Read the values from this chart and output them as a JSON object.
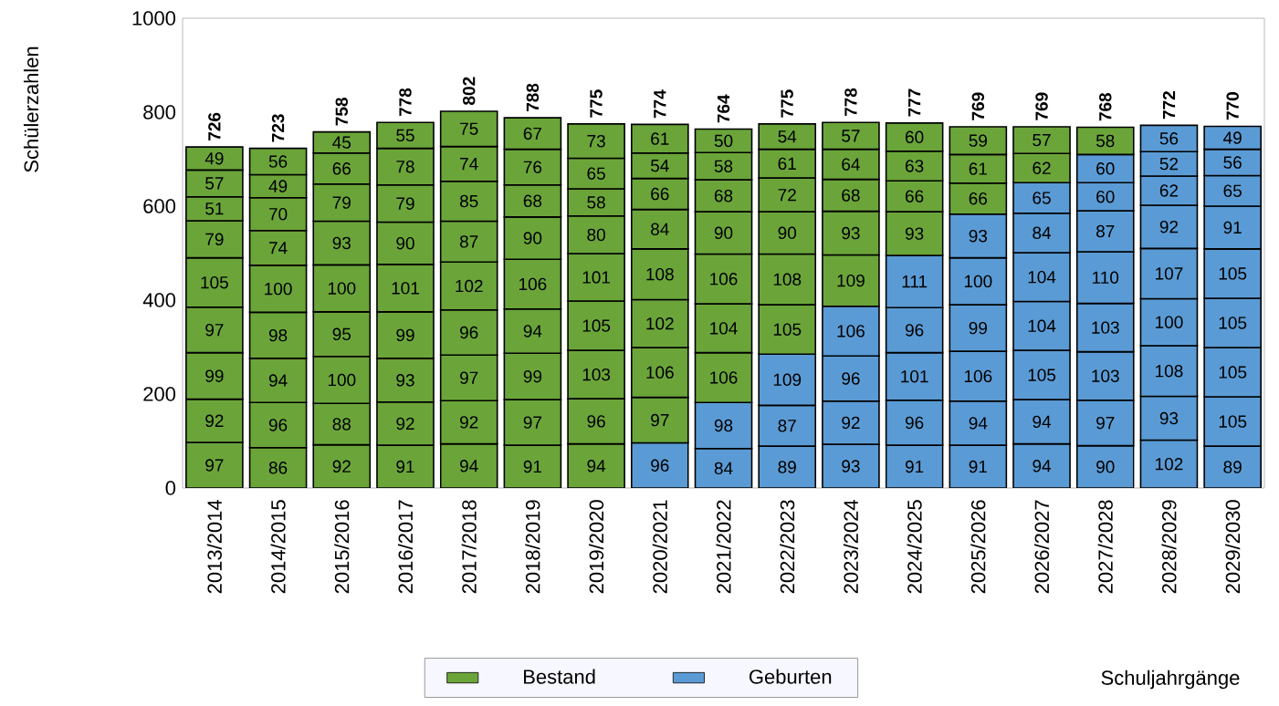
{
  "chart_data": {
    "type": "bar",
    "stacked": true,
    "ylabel": "Schülerzahlen",
    "xlabel": "Schuljahrgänge",
    "legend": "bottom",
    "data_labels": true,
    "categories": [
      "2013/2014",
      "2014/2015",
      "2015/2016",
      "2016/2017",
      "2017/2018",
      "2018/2019",
      "2019/2020",
      "2020/2021",
      "2021/2022",
      "2022/2023",
      "2023/2024",
      "2024/2025",
      "2025/2026",
      "2026/2027",
      "2027/2028",
      "2028/2029",
      "2029/2030"
    ],
    "ylim": [
      0,
      1000
    ],
    "yticks": [
      0,
      200,
      400,
      600,
      800,
      1000
    ],
    "totals": [
      "726",
      "723",
      "758",
      "778",
      "802",
      "788",
      "775",
      "774",
      "764",
      "775",
      "778",
      "777",
      "769",
      "769",
      "768",
      "772",
      "770"
    ],
    "series": [
      {
        "name": "Bestand",
        "color": "#6ba53a",
        "values": [
          97,
          86,
          92,
          91,
          94,
          91,
          94,
          null,
          null,
          null,
          null,
          null,
          null,
          null,
          null,
          null,
          null
        ]
      },
      {
        "name": "Geburten",
        "color": "#5b9bd5",
        "values": [
          null,
          null,
          null,
          null,
          null,
          null,
          null,
          96,
          84,
          89,
          93,
          91,
          91,
          94,
          90,
          102,
          89
        ]
      },
      {
        "color": "#6ba53a",
        "values": [
          92,
          96,
          88,
          92,
          92,
          97,
          96,
          97,
          null,
          null,
          null,
          null,
          null,
          null,
          null,
          null,
          null
        ]
      },
      {
        "color": "#5b9bd5",
        "values": [
          null,
          null,
          null,
          null,
          null,
          null,
          null,
          null,
          98,
          87,
          92,
          96,
          94,
          94,
          97,
          93,
          105
        ]
      },
      {
        "color": "#6ba53a",
        "values": [
          99,
          94,
          100,
          93,
          97,
          99,
          103,
          106,
          106,
          null,
          null,
          null,
          null,
          null,
          null,
          null,
          null
        ]
      },
      {
        "color": "#5b9bd5",
        "values": [
          null,
          null,
          null,
          null,
          null,
          null,
          null,
          null,
          null,
          109,
          96,
          101,
          106,
          105,
          103,
          108,
          105
        ]
      },
      {
        "color": "#6ba53a",
        "values": [
          97,
          98,
          95,
          99,
          96,
          94,
          105,
          102,
          104,
          105,
          null,
          null,
          null,
          null,
          null,
          null,
          null
        ]
      },
      {
        "color": "#5b9bd5",
        "values": [
          null,
          null,
          null,
          null,
          null,
          null,
          null,
          null,
          null,
          null,
          106,
          96,
          99,
          104,
          103,
          100,
          105
        ]
      },
      {
        "color": "#6ba53a",
        "values": [
          105,
          100,
          100,
          101,
          102,
          106,
          101,
          108,
          106,
          108,
          109,
          null,
          null,
          null,
          null,
          null,
          null
        ]
      },
      {
        "color": "#5b9bd5",
        "values": [
          null,
          null,
          null,
          null,
          null,
          null,
          null,
          null,
          null,
          null,
          null,
          111,
          100,
          104,
          110,
          107,
          105
        ]
      },
      {
        "color": "#6ba53a",
        "values": [
          79,
          74,
          93,
          90,
          87,
          90,
          80,
          84,
          90,
          90,
          93,
          93,
          null,
          null,
          null,
          null,
          null
        ]
      },
      {
        "color": "#5b9bd5",
        "values": [
          null,
          null,
          null,
          null,
          null,
          null,
          null,
          null,
          null,
          null,
          null,
          null,
          93,
          84,
          87,
          92,
          91
        ]
      },
      {
        "color": "#6ba53a",
        "values": [
          51,
          70,
          79,
          79,
          85,
          68,
          58,
          66,
          68,
          72,
          68,
          66,
          66,
          null,
          null,
          null,
          null
        ]
      },
      {
        "color": "#5b9bd5",
        "values": [
          null,
          null,
          null,
          null,
          null,
          null,
          null,
          null,
          null,
          null,
          null,
          null,
          null,
          65,
          60,
          62,
          65
        ]
      },
      {
        "color": "#6ba53a",
        "values": [
          57,
          49,
          66,
          78,
          74,
          76,
          65,
          54,
          58,
          61,
          64,
          63,
          61,
          62,
          null,
          null,
          null
        ]
      },
      {
        "color": "#5b9bd5",
        "values": [
          null,
          null,
          null,
          null,
          null,
          null,
          null,
          null,
          null,
          null,
          null,
          null,
          null,
          null,
          60,
          52,
          56
        ]
      },
      {
        "color": "#6ba53a",
        "values": [
          49,
          56,
          45,
          55,
          75,
          67,
          73,
          61,
          50,
          54,
          57,
          60,
          59,
          57,
          58,
          null,
          null
        ]
      },
      {
        "color": "#5b9bd5",
        "values": [
          null,
          null,
          null,
          null,
          null,
          null,
          null,
          null,
          null,
          null,
          null,
          null,
          null,
          null,
          null,
          56,
          49
        ]
      }
    ]
  }
}
